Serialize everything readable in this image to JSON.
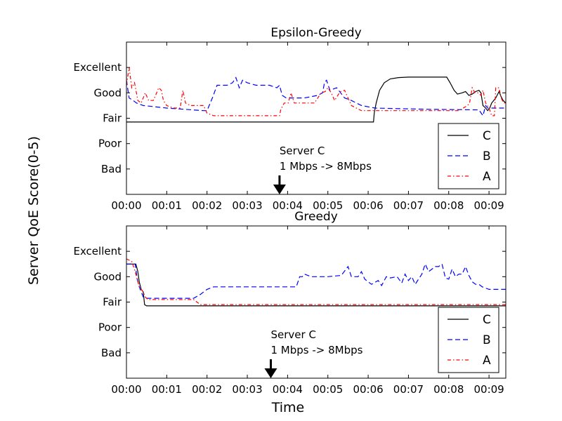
{
  "figure": {
    "ylabel": "Server QoE Score(0-5)",
    "xlabel": "Time"
  },
  "chart_data": [
    {
      "type": "line",
      "title": "Epsilon-Greedy",
      "xlabel": "",
      "ylabel": "",
      "xlim": [
        0,
        565
      ],
      "ylim": [
        0,
        6
      ],
      "x_tick_values": [
        0,
        60,
        120,
        180,
        240,
        300,
        360,
        420,
        480,
        540
      ],
      "x_tick_labels": [
        "00:00",
        "00:01",
        "00:02",
        "00:03",
        "00:04",
        "00:05",
        "00:06",
        "00:07",
        "00:08",
        "00:09"
      ],
      "y_tick_values": [
        1,
        2,
        3,
        4,
        5
      ],
      "y_tick_labels": [
        "Bad",
        "Poor",
        "Fair",
        "Good",
        "Excellent"
      ],
      "legend_position": "lower-right",
      "grid": false,
      "annotation": {
        "line1": "Server C",
        "line2": "1 Mbps -> 8Mbps",
        "x": 228
      },
      "series": [
        {
          "name": "C",
          "color": "#000000",
          "style": "solid",
          "points": [
            [
              0,
              2.85
            ],
            [
              368,
              2.85
            ],
            [
              369,
              3.2
            ],
            [
              372,
              3.6
            ],
            [
              377,
              4.1
            ],
            [
              384,
              4.4
            ],
            [
              393,
              4.55
            ],
            [
              405,
              4.6
            ],
            [
              420,
              4.62
            ],
            [
              440,
              4.62
            ],
            [
              460,
              4.62
            ],
            [
              477,
              4.62
            ],
            [
              482,
              4.4
            ],
            [
              488,
              4.1
            ],
            [
              493,
              3.95
            ],
            [
              500,
              4.0
            ],
            [
              505,
              4.05
            ],
            [
              510,
              3.9
            ],
            [
              515,
              3.95
            ],
            [
              520,
              4.05
            ],
            [
              525,
              4.1
            ],
            [
              528,
              4.0
            ],
            [
              531,
              3.5
            ],
            [
              535,
              3.4
            ],
            [
              538,
              3.3
            ],
            [
              541,
              3.4
            ],
            [
              544,
              3.6
            ],
            [
              547,
              3.7
            ],
            [
              550,
              3.8
            ],
            [
              555,
              4.05
            ],
            [
              558,
              3.85
            ],
            [
              561,
              3.7
            ],
            [
              565,
              3.6
            ]
          ]
        },
        {
          "name": "B",
          "color": "#0000ff",
          "style": "dashed",
          "points": [
            [
              0,
              4.5
            ],
            [
              4,
              3.8
            ],
            [
              10,
              3.7
            ],
            [
              15,
              3.6
            ],
            [
              25,
              3.5
            ],
            [
              60,
              3.4
            ],
            [
              115,
              3.3
            ],
            [
              120,
              3.3
            ],
            [
              128,
              3.8
            ],
            [
              135,
              4.3
            ],
            [
              150,
              4.3
            ],
            [
              158,
              4.4
            ],
            [
              163,
              4.6
            ],
            [
              168,
              4.2
            ],
            [
              173,
              4.5
            ],
            [
              180,
              4.4
            ],
            [
              193,
              4.3
            ],
            [
              213,
              4.3
            ],
            [
              224,
              4.2
            ],
            [
              228,
              4.3
            ],
            [
              232,
              3.9
            ],
            [
              238,
              3.8
            ],
            [
              250,
              3.8
            ],
            [
              265,
              3.8
            ],
            [
              285,
              3.9
            ],
            [
              292,
              4.0
            ],
            [
              295,
              4.4
            ],
            [
              298,
              4.5
            ],
            [
              303,
              4.1
            ],
            [
              313,
              4.2
            ],
            [
              325,
              3.8
            ],
            [
              335,
              3.7
            ],
            [
              350,
              3.5
            ],
            [
              370,
              3.4
            ],
            [
              450,
              3.35
            ],
            [
              525,
              3.33
            ],
            [
              531,
              3.1
            ],
            [
              535,
              3.5
            ],
            [
              538,
              3.4
            ],
            [
              565,
              3.4
            ]
          ]
        },
        {
          "name": "A",
          "color": "#ff0000",
          "style": "dashdot",
          "points": [
            [
              0,
              4.3
            ],
            [
              4,
              5.0
            ],
            [
              8,
              4.2
            ],
            [
              12,
              4.4
            ],
            [
              17,
              3.7
            ],
            [
              22,
              3.6
            ],
            [
              28,
              4.0
            ],
            [
              33,
              3.7
            ],
            [
              40,
              3.7
            ],
            [
              45,
              4.0
            ],
            [
              48,
              4.2
            ],
            [
              52,
              4.1
            ],
            [
              55,
              3.7
            ],
            [
              60,
              3.5
            ],
            [
              70,
              3.4
            ],
            [
              80,
              3.4
            ],
            [
              84,
              4.1
            ],
            [
              88,
              3.6
            ],
            [
              95,
              3.5
            ],
            [
              115,
              3.5
            ],
            [
              120,
              3.2
            ],
            [
              130,
              3.1
            ],
            [
              140,
              3.1
            ],
            [
              160,
              3.1
            ],
            [
              180,
              3.1
            ],
            [
              200,
              3.1
            ],
            [
              224,
              3.1
            ],
            [
              228,
              3.1
            ],
            [
              230,
              3.35
            ],
            [
              235,
              3.6
            ],
            [
              241,
              3.6
            ],
            [
              245,
              4.0
            ],
            [
              250,
              3.6
            ],
            [
              260,
              3.6
            ],
            [
              280,
              3.6
            ],
            [
              290,
              4.0
            ],
            [
              296,
              4.05
            ],
            [
              300,
              4.2
            ],
            [
              305,
              4.0
            ],
            [
              310,
              3.7
            ],
            [
              316,
              3.95
            ],
            [
              319,
              4.05
            ],
            [
              325,
              4.1
            ],
            [
              330,
              3.8
            ],
            [
              335,
              3.5
            ],
            [
              350,
              3.3
            ],
            [
              400,
              3.3
            ],
            [
              450,
              3.3
            ],
            [
              490,
              3.3
            ],
            [
              495,
              3.3
            ],
            [
              508,
              3.5
            ],
            [
              511,
              3.6
            ],
            [
              515,
              4.2
            ],
            [
              519,
              4.0
            ],
            [
              524,
              4.0
            ],
            [
              528,
              3.9
            ],
            [
              531,
              4.1
            ],
            [
              535,
              3.6
            ],
            [
              540,
              3.4
            ],
            [
              544,
              3.1
            ],
            [
              548,
              3.1
            ],
            [
              550,
              4.2
            ],
            [
              555,
              4.2
            ],
            [
              558,
              3.8
            ],
            [
              562,
              3.6
            ],
            [
              565,
              3.6
            ]
          ]
        }
      ]
    },
    {
      "type": "line",
      "title": "Greedy",
      "xlabel": "",
      "ylabel": "",
      "xlim": [
        0,
        565
      ],
      "ylim": [
        0,
        6
      ],
      "x_tick_values": [
        0,
        60,
        120,
        180,
        240,
        300,
        360,
        420,
        480,
        540
      ],
      "x_tick_labels": [
        "00:00",
        "00:01",
        "00:02",
        "00:03",
        "00:04",
        "00:05",
        "00:06",
        "00:07",
        "00:08",
        "00:09"
      ],
      "y_tick_values": [
        1,
        2,
        3,
        4,
        5
      ],
      "y_tick_labels": [
        "Bad",
        "Poor",
        "Fair",
        "Good",
        "Excellent"
      ],
      "legend_position": "lower-right",
      "grid": false,
      "annotation": {
        "line1": "Server C",
        "line2": "1 Mbps -> 8Mbps",
        "x": 215
      },
      "series": [
        {
          "name": "C",
          "color": "#000000",
          "style": "solid",
          "points": [
            [
              0,
              4.5
            ],
            [
              14,
              4.5
            ],
            [
              17,
              4.2
            ],
            [
              19,
              3.8
            ],
            [
              22,
              3.5
            ],
            [
              25,
              3.4
            ],
            [
              27,
              2.9
            ],
            [
              30,
              2.85
            ],
            [
              120,
              2.85
            ],
            [
              200,
              2.85
            ],
            [
              300,
              2.85
            ],
            [
              400,
              2.85
            ],
            [
              500,
              2.85
            ],
            [
              565,
              2.85
            ]
          ]
        },
        {
          "name": "B",
          "color": "#0000ff",
          "style": "dashed",
          "points": [
            [
              0,
              4.5
            ],
            [
              13,
              4.5
            ],
            [
              16,
              3.9
            ],
            [
              19,
              3.6
            ],
            [
              22,
              3.4
            ],
            [
              25,
              3.2
            ],
            [
              30,
              3.15
            ],
            [
              60,
              3.15
            ],
            [
              100,
              3.15
            ],
            [
              110,
              3.3
            ],
            [
              120,
              3.5
            ],
            [
              130,
              3.6
            ],
            [
              160,
              3.6
            ],
            [
              200,
              3.6
            ],
            [
              253,
              3.6
            ],
            [
              258,
              4.0
            ],
            [
              262,
              4.0
            ],
            [
              265,
              4.1
            ],
            [
              275,
              4.0
            ],
            [
              300,
              4.0
            ],
            [
              320,
              4.05
            ],
            [
              330,
              4.4
            ],
            [
              335,
              4.0
            ],
            [
              345,
              4.0
            ],
            [
              350,
              4.2
            ],
            [
              355,
              3.9
            ],
            [
              365,
              3.7
            ],
            [
              375,
              3.85
            ],
            [
              380,
              3.65
            ],
            [
              387,
              4.0
            ],
            [
              393,
              3.95
            ],
            [
              403,
              4.0
            ],
            [
              410,
              3.75
            ],
            [
              415,
              4.1
            ],
            [
              420,
              3.85
            ],
            [
              425,
              4.0
            ],
            [
              430,
              3.7
            ],
            [
              440,
              4.1
            ],
            [
              445,
              4.5
            ],
            [
              450,
              4.2
            ],
            [
              455,
              4.3
            ],
            [
              460,
              4.4
            ],
            [
              465,
              4.4
            ],
            [
              470,
              4.5
            ],
            [
              475,
              3.95
            ],
            [
              480,
              3.9
            ],
            [
              485,
              4.3
            ],
            [
              490,
              4.0
            ],
            [
              495,
              4.1
            ],
            [
              500,
              4.1
            ],
            [
              505,
              4.4
            ],
            [
              510,
              4.05
            ],
            [
              515,
              3.8
            ],
            [
              520,
              3.7
            ],
            [
              525,
              3.7
            ],
            [
              530,
              3.6
            ],
            [
              535,
              3.55
            ],
            [
              540,
              3.5
            ],
            [
              550,
              3.5
            ],
            [
              565,
              3.5
            ]
          ]
        },
        {
          "name": "A",
          "color": "#ff0000",
          "style": "dashdot",
          "points": [
            [
              0,
              4.7
            ],
            [
              8,
              4.6
            ],
            [
              13,
              4.2
            ],
            [
              16,
              3.9
            ],
            [
              19,
              3.6
            ],
            [
              22,
              3.5
            ],
            [
              25,
              3.4
            ],
            [
              28,
              3.2
            ],
            [
              32,
              3.1
            ],
            [
              60,
              3.1
            ],
            [
              100,
              3.1
            ],
            [
              110,
              2.9
            ],
            [
              120,
              2.9
            ],
            [
              200,
              2.9
            ],
            [
              300,
              2.9
            ],
            [
              400,
              2.9
            ],
            [
              500,
              2.9
            ],
            [
              565,
              2.9
            ]
          ]
        }
      ]
    }
  ]
}
